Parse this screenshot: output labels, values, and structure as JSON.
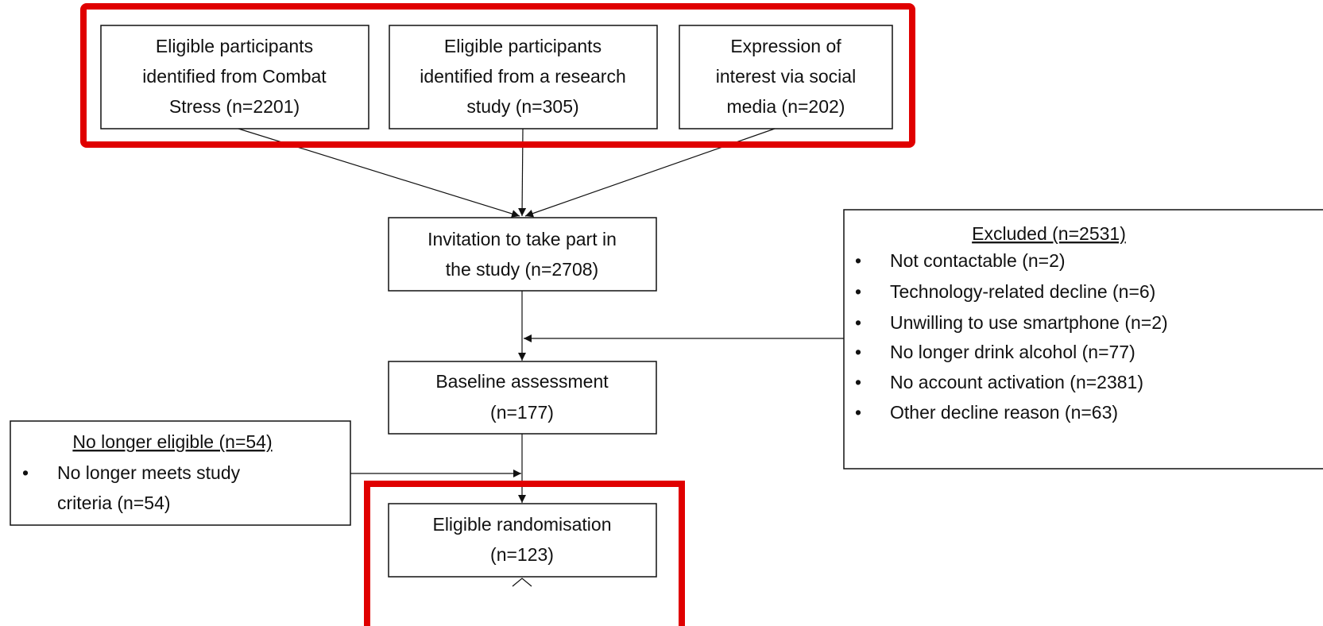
{
  "sources": [
    {
      "lines": [
        "Eligible participants",
        "identified from Combat",
        "Stress (n=2201)"
      ]
    },
    {
      "lines": [
        "Eligible participants",
        "identified from a research",
        "study (n=305)"
      ]
    },
    {
      "lines": [
        "Expression of",
        "interest via social",
        "media (n=202)"
      ]
    }
  ],
  "invitation": {
    "lines": [
      "Invitation to take part in",
      "the study (n=2708)"
    ]
  },
  "baseline": {
    "lines": [
      "Baseline assessment",
      "(n=177)"
    ]
  },
  "randomisation": {
    "lines": [
      "Eligible randomisation",
      "(n=123)"
    ]
  },
  "excluded": {
    "title": "Excluded (n=2531)",
    "items": [
      "Not contactable (n=2)",
      "Technology-related decline (n=6)",
      "Unwilling to use smartphone (n=2)",
      "No longer drink alcohol (n=77)",
      "No account activation (n=2381)",
      "Other decline reason (n=63)"
    ]
  },
  "no_longer_eligible": {
    "title": "No longer eligible (n=54)",
    "items": [
      {
        "lines": [
          "No longer meets study",
          "criteria (n=54)"
        ]
      }
    ]
  }
}
